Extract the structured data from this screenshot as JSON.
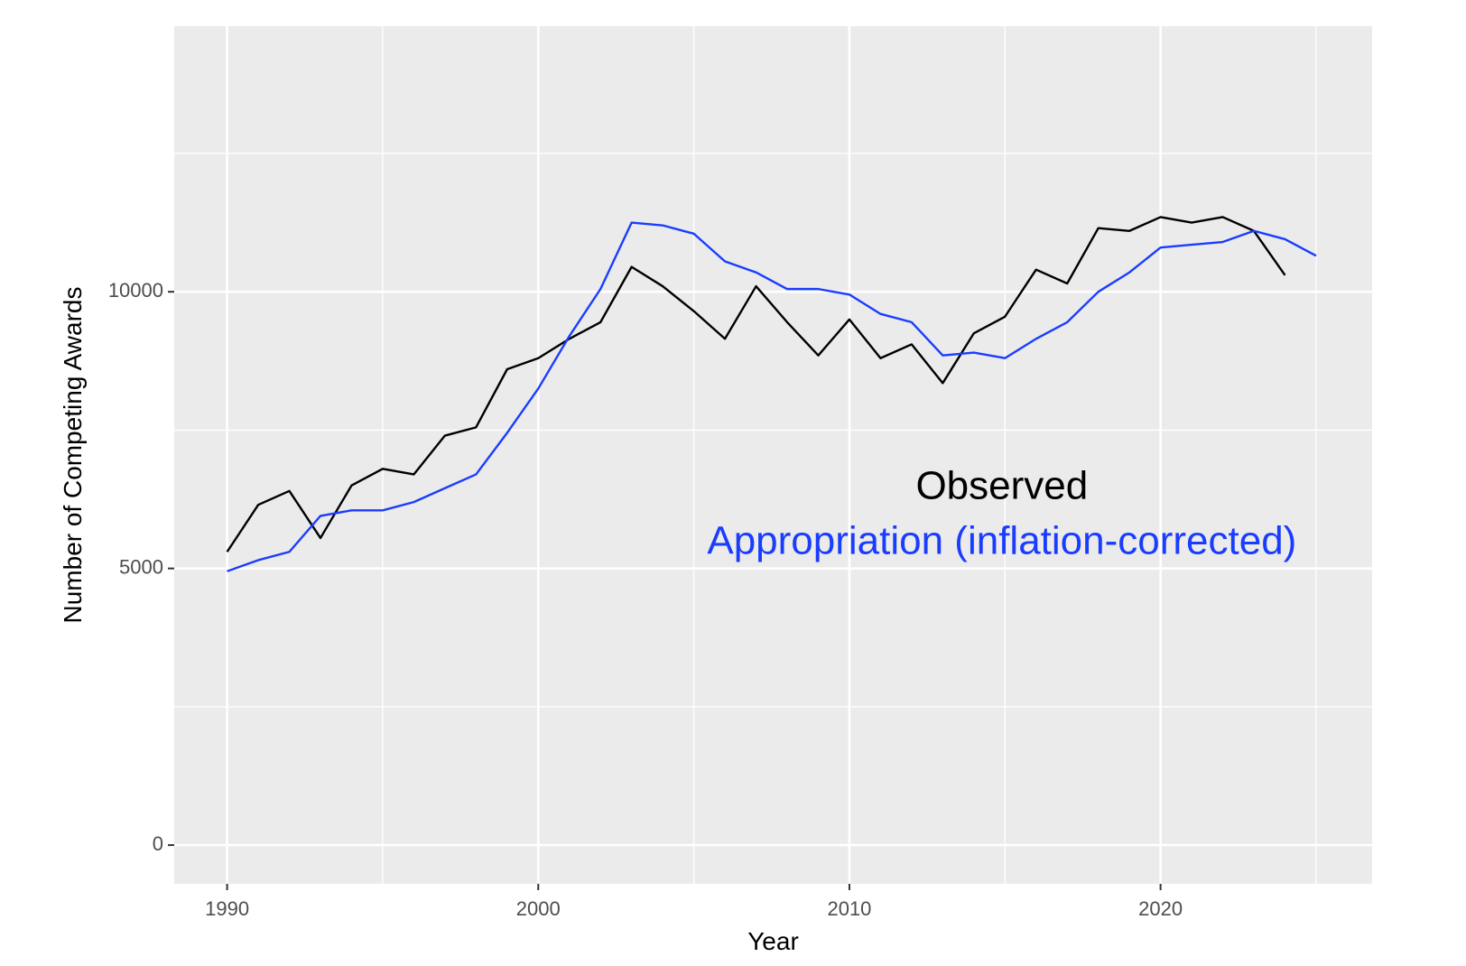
{
  "chart_data": {
    "type": "line",
    "title": "",
    "xlabel": "Year",
    "ylabel": "Number of Competing Awards",
    "xlim": [
      1988.3,
      2026.8
    ],
    "ylim": [
      -700,
      14800
    ],
    "x_ticks": [
      1990,
      2000,
      2010,
      2020
    ],
    "y_ticks": [
      0,
      5000,
      10000
    ],
    "x_tick_labels": [
      "1990",
      "2000",
      "2010",
      "2020"
    ],
    "y_tick_labels": [
      "0",
      "5000",
      "10000"
    ],
    "grid": true,
    "legend": "none",
    "annotations": [
      {
        "text": "Observed",
        "color": "#000000",
        "x": 2014.9,
        "y": 6450
      },
      {
        "text": "Appropriation (inflation-corrected)",
        "color": "#1a3cff",
        "x": 2014.9,
        "y": 5450
      }
    ],
    "series": [
      {
        "color": "#000000",
        "x": [
          1990,
          1991,
          1992,
          1993,
          1994,
          1995,
          1996,
          1997,
          1998,
          1999,
          2000,
          2001,
          2002,
          2003,
          2004,
          2005,
          2006,
          2007,
          2008,
          2009,
          2010,
          2011,
          2012,
          2013,
          2014,
          2015,
          2016,
          2017,
          2018,
          2019,
          2020,
          2021,
          2022,
          2023,
          2024
        ],
        "y": [
          5300,
          6150,
          6400,
          5550,
          6500,
          6800,
          6700,
          7400,
          7550,
          8600,
          8800,
          9150,
          9450,
          10450,
          10100,
          9650,
          9150,
          10100,
          9450,
          8850,
          9500,
          8800,
          9050,
          8350,
          9250,
          9550,
          10400,
          10150,
          11150,
          11100,
          11350,
          11250,
          11350,
          11100,
          10300
        ]
      },
      {
        "color": "#1a3cff",
        "x": [
          1990,
          1991,
          1992,
          1993,
          1994,
          1995,
          1996,
          1997,
          1998,
          1999,
          2000,
          2001,
          2002,
          2003,
          2004,
          2005,
          2006,
          2007,
          2008,
          2009,
          2010,
          2011,
          2012,
          2013,
          2014,
          2015,
          2016,
          2017,
          2018,
          2019,
          2020,
          2021,
          2022,
          2023,
          2024,
          2025
        ],
        "y": [
          4950,
          5150,
          5300,
          5950,
          6050,
          6050,
          6200,
          6450,
          6700,
          7450,
          8250,
          9200,
          10050,
          11250,
          11200,
          11050,
          10550,
          10350,
          10050,
          10050,
          9950,
          9600,
          9450,
          8850,
          8900,
          8800,
          9150,
          9450,
          10000,
          10350,
          10800,
          10850,
          10900,
          11100,
          10950,
          10650
        ]
      }
    ]
  }
}
